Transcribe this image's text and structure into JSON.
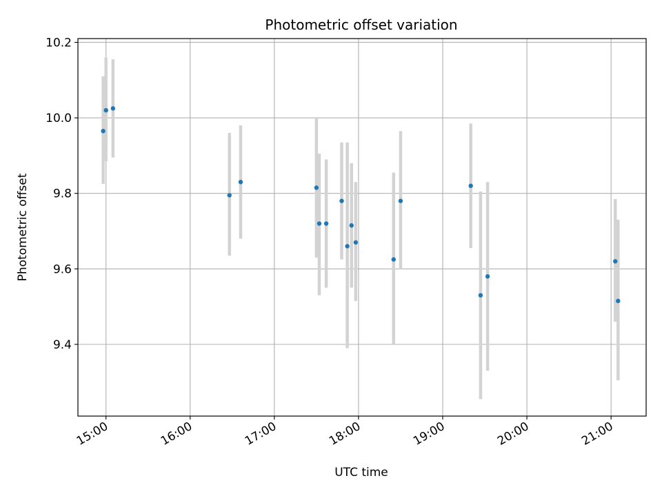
{
  "chart_data": {
    "type": "scatter",
    "title": "Photometric offset variation",
    "xlabel": "UTC time",
    "ylabel": "Photometric offset",
    "xlim": [
      "14:40",
      "21:25"
    ],
    "ylim": [
      9.21,
      10.21
    ],
    "x_ticks": [
      "15:00",
      "16:00",
      "17:00",
      "18:00",
      "19:00",
      "20:00",
      "21:00"
    ],
    "y_ticks": [
      9.4,
      9.6,
      9.8,
      10.0,
      10.2
    ],
    "y_tick_labels": [
      "9.4",
      "9.6",
      "9.8",
      "10.0",
      "10.2"
    ],
    "grid": true,
    "error_bar_color": "#d3d3d3",
    "point_color": "#1f77b4",
    "points": [
      {
        "time": "14:58",
        "y": 9.965,
        "err_low": 9.825,
        "err_high": 10.11
      },
      {
        "time": "15:00",
        "y": 10.02,
        "err_low": 9.885,
        "err_high": 10.16
      },
      {
        "time": "15:05",
        "y": 10.025,
        "err_low": 9.895,
        "err_high": 10.155
      },
      {
        "time": "16:28",
        "y": 9.795,
        "err_low": 9.635,
        "err_high": 9.96
      },
      {
        "time": "16:36",
        "y": 9.83,
        "err_low": 9.68,
        "err_high": 9.98
      },
      {
        "time": "17:30",
        "y": 9.815,
        "err_low": 9.63,
        "err_high": 10.0
      },
      {
        "time": "17:32",
        "y": 9.72,
        "err_low": 9.53,
        "err_high": 9.905
      },
      {
        "time": "17:37",
        "y": 9.72,
        "err_low": 9.55,
        "err_high": 9.89
      },
      {
        "time": "17:48",
        "y": 9.78,
        "err_low": 9.625,
        "err_high": 9.935
      },
      {
        "time": "17:52",
        "y": 9.66,
        "err_low": 9.39,
        "err_high": 9.935
      },
      {
        "time": "17:55",
        "y": 9.715,
        "err_low": 9.55,
        "err_high": 9.88
      },
      {
        "time": "17:58",
        "y": 9.67,
        "err_low": 9.515,
        "err_high": 9.83
      },
      {
        "time": "18:25",
        "y": 9.625,
        "err_low": 9.4,
        "err_high": 9.855
      },
      {
        "time": "18:30",
        "y": 9.78,
        "err_low": 9.6,
        "err_high": 9.965
      },
      {
        "time": "19:20",
        "y": 9.82,
        "err_low": 9.655,
        "err_high": 9.985
      },
      {
        "time": "19:27",
        "y": 9.53,
        "err_low": 9.255,
        "err_high": 9.805
      },
      {
        "time": "19:32",
        "y": 9.58,
        "err_low": 9.33,
        "err_high": 9.83
      },
      {
        "time": "21:03",
        "y": 9.62,
        "err_low": 9.46,
        "err_high": 9.785
      },
      {
        "time": "21:05",
        "y": 9.515,
        "err_low": 9.305,
        "err_high": 9.73
      }
    ]
  }
}
